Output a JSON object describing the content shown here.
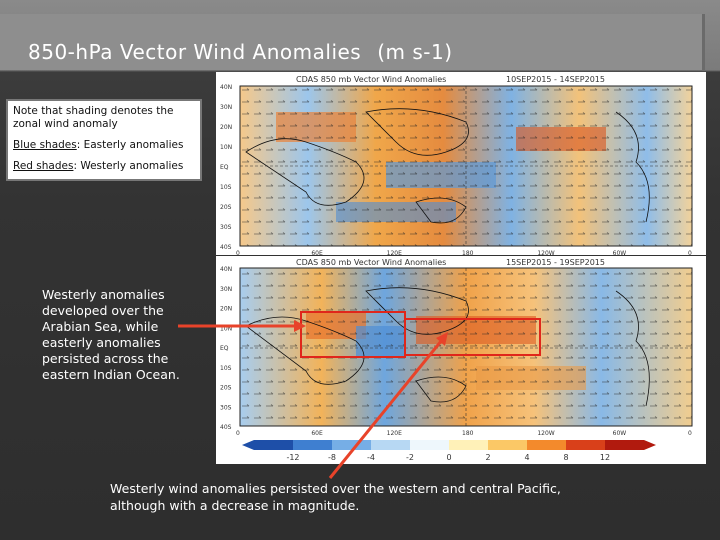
{
  "slide": {
    "title": "850-hPa Vector Wind Anomalies",
    "title_unit": "(m s-1)"
  },
  "note": {
    "intro": "Note that shading denotes the zonal wind anomaly",
    "blue_label": "Blue shades",
    "blue_text": ": Easterly anomalies",
    "red_label": "Red shades",
    "red_text": ": Westerly anomalies"
  },
  "map_top": {
    "header": "CDAS 850 mb Vector Wind Anomalies",
    "dates": "10SEP2015 - 14SEP2015",
    "lat_labels": [
      "40N",
      "30N",
      "20N",
      "10N",
      "EQ",
      "10S",
      "20S",
      "30S",
      "40S"
    ],
    "lon_labels": [
      "0",
      "60E",
      "120E",
      "180",
      "120W",
      "60W",
      "0"
    ]
  },
  "map_bottom": {
    "header": "CDAS 850 mb Vector Wind Anomalies",
    "dates": "15SEP2015 - 19SEP2015",
    "lat_labels": [
      "40N",
      "30N",
      "20N",
      "10N",
      "EQ",
      "10S",
      "20S",
      "30S",
      "40S"
    ],
    "lon_labels": [
      "0",
      "60E",
      "120E",
      "180",
      "120W",
      "60W",
      "0"
    ]
  },
  "colorbar": {
    "ticks": [
      "-12",
      "-8",
      "-4",
      "-2",
      "0",
      "2",
      "4",
      "8",
      "12"
    ],
    "colors": [
      "#1e4fa8",
      "#3f7fd0",
      "#76aee6",
      "#b7d8f3",
      "#eef7fc",
      "#fff1b8",
      "#fbc866",
      "#f38a2c",
      "#d9401a",
      "#b11a0e"
    ]
  },
  "callouts": {
    "arabian": "Westerly anomalies developed over the Arabian Sea, while easterly anomalies persisted across the eastern Indian Ocean.",
    "pacific": "Westerly wind anomalies persisted over the western and central Pacific, although with a decrease in magnitude."
  },
  "colors": {
    "arrow": "#e8432a",
    "box": "#e0261b"
  }
}
